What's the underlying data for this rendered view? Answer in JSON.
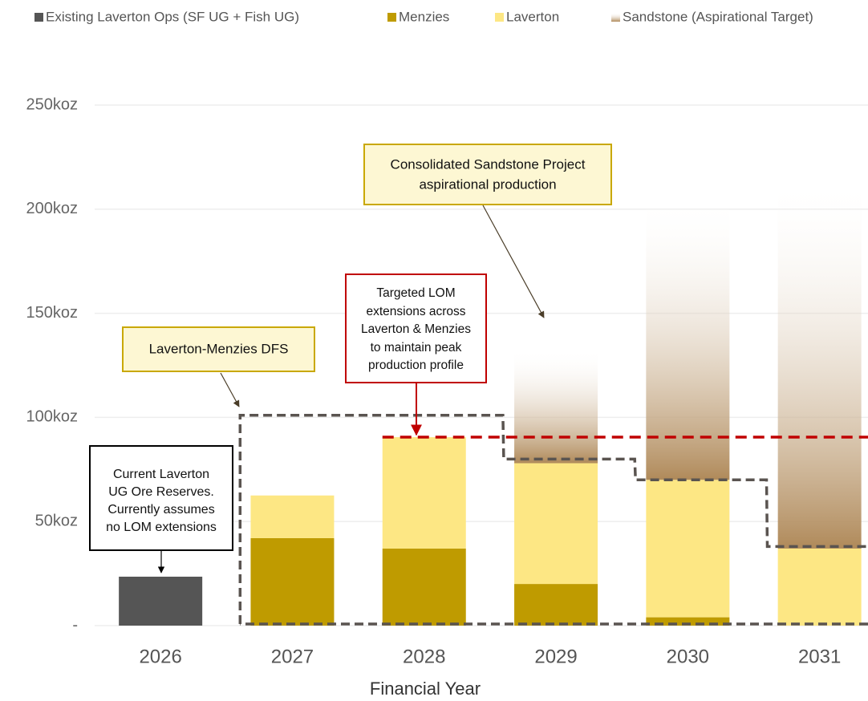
{
  "chart_data": {
    "type": "stacked-bar",
    "x_label": "Financial Year",
    "categories": [
      "2026",
      "2027",
      "2028",
      "2029",
      "2030",
      "2031"
    ],
    "series": [
      {
        "name": "Existing Laverton Ops (SF UG + Fish UG)",
        "color": "#555555",
        "values": [
          23.5,
          0,
          0,
          0,
          0,
          0
        ]
      },
      {
        "name": "Menzies",
        "color": "#bf9b00",
        "values": [
          0,
          42,
          37,
          20,
          4,
          0
        ]
      },
      {
        "name": "Laverton",
        "color": "#fde784",
        "values": [
          0,
          20.5,
          53.5,
          58,
          66,
          37
        ]
      },
      {
        "name": "Sandstone (Aspirational Target)",
        "color": "#b08a5a",
        "values": [
          0,
          0,
          0,
          55,
          136,
          178
        ],
        "gradient": true
      }
    ],
    "dfs_profile": {
      "color": "#5a5450",
      "values": [
        null,
        101,
        101,
        80,
        70,
        38
      ]
    },
    "target_line": {
      "color": "#c00000",
      "value": 90.5,
      "start_category": 2
    },
    "ylim": [
      0,
      250
    ],
    "yticks": [
      {
        "value": 0,
        "label": "-"
      },
      {
        "value": 50,
        "label": "50koz"
      },
      {
        "value": 100,
        "label": "100koz"
      },
      {
        "value": 150,
        "label": "150koz"
      },
      {
        "value": 200,
        "label": "200koz"
      },
      {
        "value": 250,
        "label": "250koz"
      }
    ],
    "grid": true,
    "annotations": [
      {
        "lines": [
          "Current Laverton",
          "UG Ore Reserves.",
          "Currently assumes",
          "no LOM extensions"
        ]
      },
      {
        "lines": [
          "Laverton-Menzies DFS"
        ]
      },
      {
        "lines": [
          "Targeted LOM",
          "extensions across",
          "Laverton & Menzies",
          "to maintain peak",
          "production profile"
        ]
      },
      {
        "lines": [
          "Consolidated Sandstone Project",
          "aspirational production"
        ]
      }
    ]
  }
}
